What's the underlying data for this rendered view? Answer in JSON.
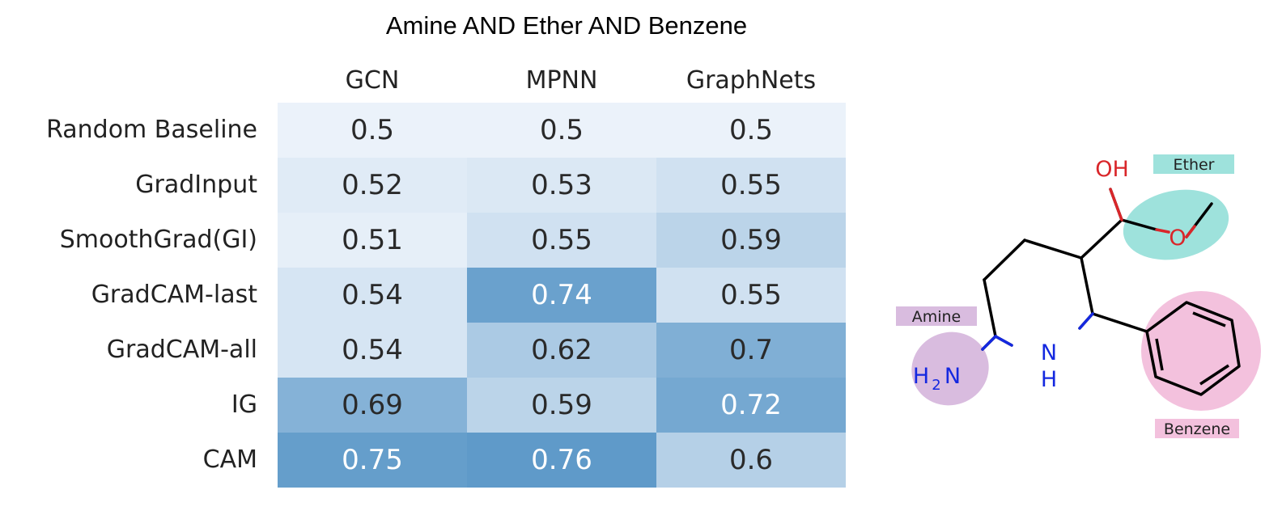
{
  "chart_data": {
    "type": "heatmap",
    "title": "Amine AND Ether AND Benzene",
    "columns": [
      "GCN",
      "MPNN",
      "GraphNets"
    ],
    "rows": [
      "Random Baseline",
      "GradInput",
      "SmoothGrad(GI)",
      "GradCAM-last",
      "GradCAM-all",
      "IG",
      "CAM"
    ],
    "values": [
      [
        0.5,
        0.5,
        0.5
      ],
      [
        0.52,
        0.53,
        0.55
      ],
      [
        0.51,
        0.55,
        0.59
      ],
      [
        0.54,
        0.74,
        0.55
      ],
      [
        0.54,
        0.62,
        0.7
      ],
      [
        0.69,
        0.59,
        0.72
      ],
      [
        0.75,
        0.76,
        0.6
      ]
    ],
    "value_labels": [
      [
        "0.5",
        "0.5",
        "0.5"
      ],
      [
        "0.52",
        "0.53",
        "0.55"
      ],
      [
        "0.51",
        "0.55",
        "0.59"
      ],
      [
        "0.54",
        "0.74",
        "0.55"
      ],
      [
        "0.54",
        "0.62",
        "0.7"
      ],
      [
        "0.69",
        "0.59",
        "0.72"
      ],
      [
        "0.75",
        "0.76",
        "0.6"
      ]
    ],
    "colormap": "Blues",
    "color_range": [
      0.5,
      0.8
    ]
  },
  "molecule": {
    "highlights": [
      {
        "label": "Ether",
        "color": "#9ee2dc"
      },
      {
        "label": "Amine",
        "color": "#d9bcdf"
      },
      {
        "label": "Benzene",
        "color": "#f3c1dd"
      }
    ],
    "atoms": {
      "hydroxyl": "OH",
      "oxygen": "O",
      "amine_h": "H",
      "amine_2": "2",
      "amine_n": "N",
      "ring_n": "N",
      "ring_h": "H"
    },
    "colors": {
      "oxygen": "#d9262a",
      "nitrogen": "#1428e0",
      "bond": "#000000"
    }
  }
}
